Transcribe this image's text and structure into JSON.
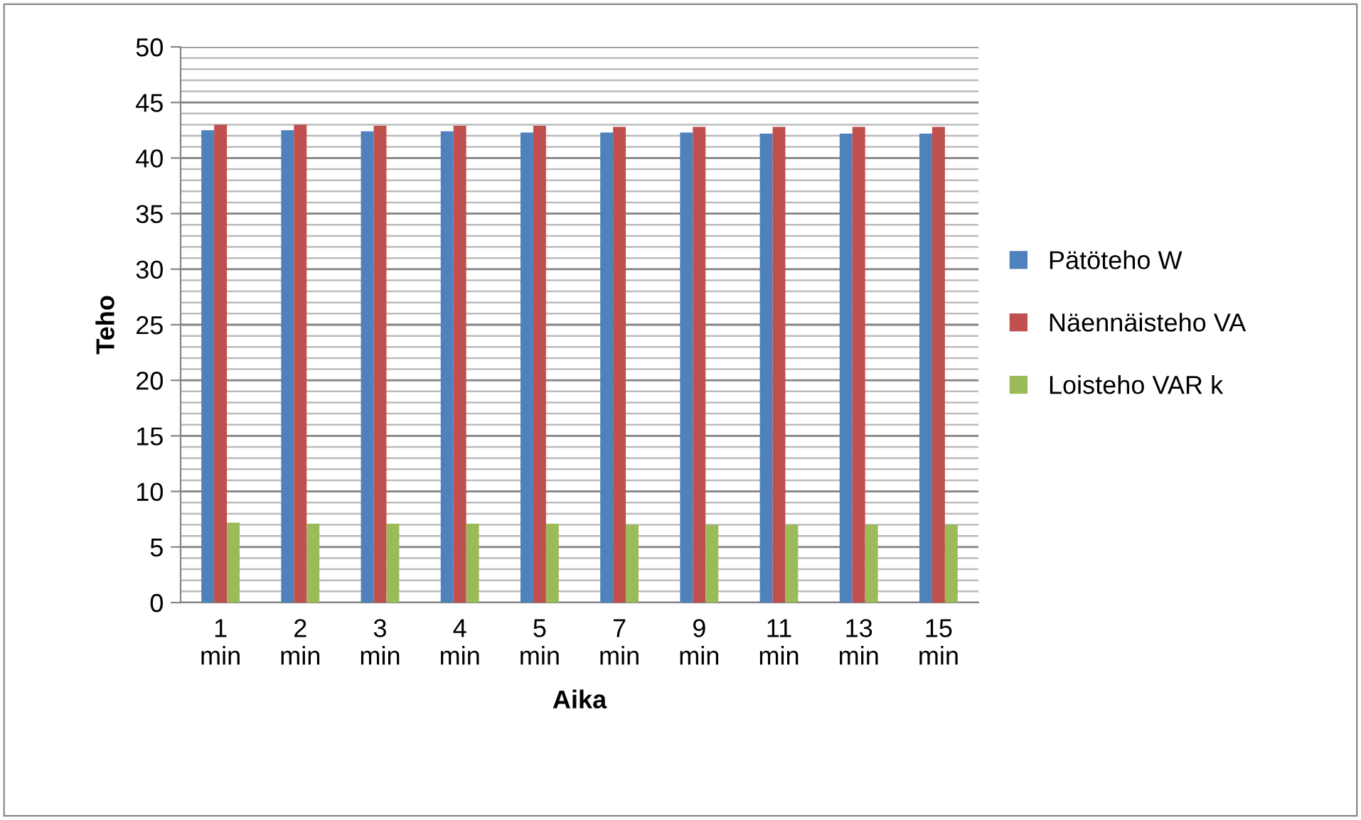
{
  "chart_data": {
    "type": "bar",
    "xlabel": "Aika",
    "ylabel": "Teho",
    "categories": [
      "1\nmin",
      "2\nmin",
      "3\nmin",
      "4\nmin",
      "5\nmin",
      "7\nmin",
      "9\nmin",
      "11\nmin",
      "13\nmin",
      "15\nmin"
    ],
    "series": [
      {
        "name": "Pätöteho W",
        "color": "#4f81bd",
        "values": [
          42.5,
          42.5,
          42.4,
          42.4,
          42.3,
          42.3,
          42.3,
          42.2,
          42.2,
          42.2
        ]
      },
      {
        "name": "Näennäisteho VA",
        "color": "#c0504d",
        "values": [
          43.0,
          43.0,
          42.9,
          42.9,
          42.9,
          42.8,
          42.8,
          42.8,
          42.8,
          42.8
        ]
      },
      {
        "name": "Loisteho VAR k",
        "color": "#9bbb59",
        "values": [
          7.2,
          7.1,
          7.1,
          7.1,
          7.1,
          7.0,
          7.0,
          7.0,
          7.0,
          7.0
        ]
      }
    ],
    "ylim": [
      0,
      50
    ],
    "yticks": [
      0,
      5,
      10,
      15,
      20,
      25,
      30,
      35,
      40,
      45,
      50
    ],
    "grid": "y",
    "legend": "right"
  }
}
